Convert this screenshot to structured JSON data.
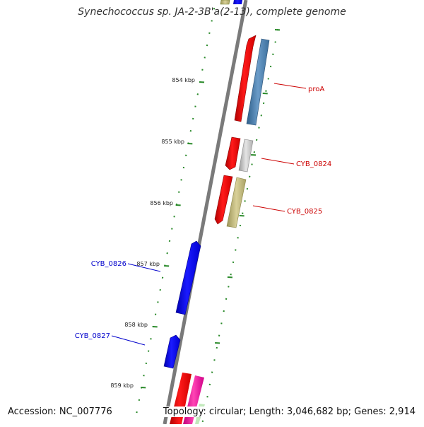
{
  "title": "Synechococcus sp. JA-2-3B'a(2-13), complete genome",
  "accession_label": "Accession: NC_007776",
  "summary_label": "Topology: circular; Length: 3,046,682 bp; Genes: 2,914",
  "colors": {
    "ruler_tick": "#2a8a2a",
    "backbone": "#7a7a7a",
    "forward_gene": "#ff0000",
    "reverse_gene": "#0000ff",
    "label_forward": "#cc0000",
    "label_reverse": "#0000cc"
  },
  "ticks": [
    {
      "label": "854 kbp"
    },
    {
      "label": "855 kbp"
    },
    {
      "label": "856 kbp"
    },
    {
      "label": "857 kbp"
    },
    {
      "label": "858 kbp"
    },
    {
      "label": "859 kbp"
    }
  ],
  "gene_labels": [
    {
      "name": "proA"
    },
    {
      "name": "CYB_0824"
    },
    {
      "name": "CYB_0825"
    },
    {
      "name": "CYB_0826"
    },
    {
      "name": "CYB_0827"
    }
  ]
}
